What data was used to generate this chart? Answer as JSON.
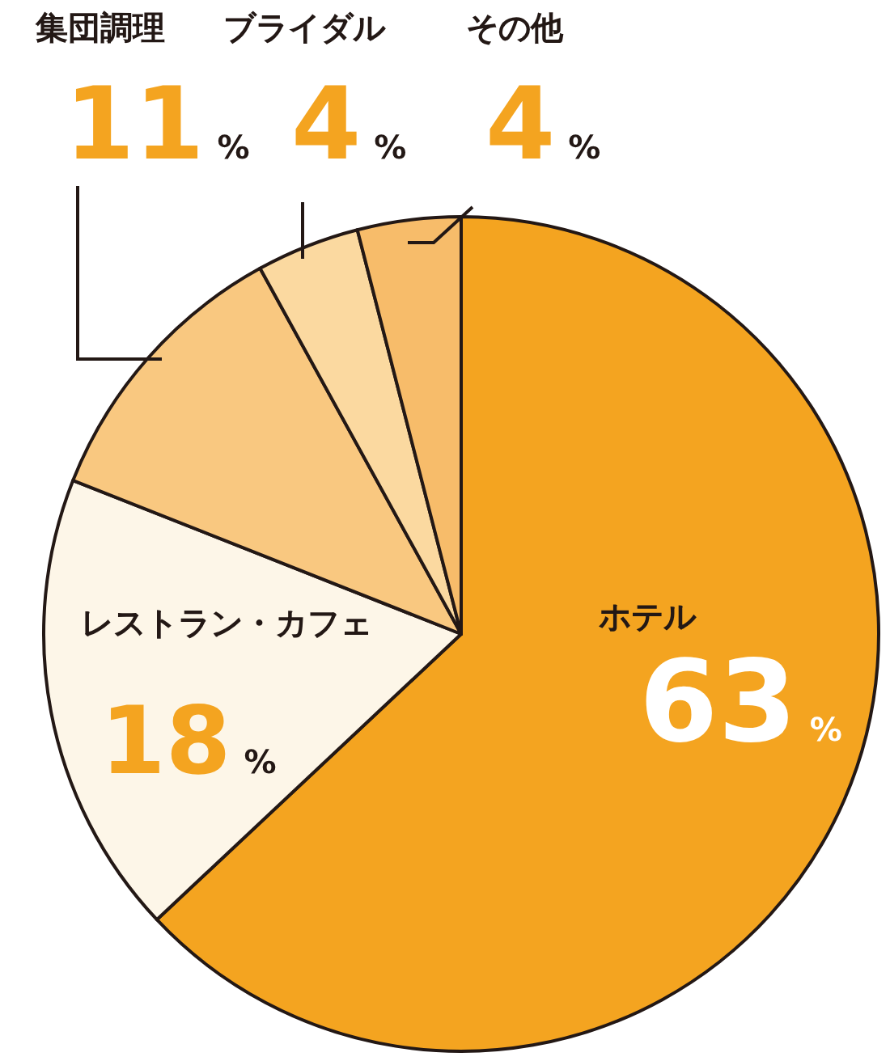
{
  "chart_data": {
    "type": "pie",
    "categories": [
      "ホテル",
      "レストラン・カフェ",
      "集団調理",
      "ブライダル",
      "その他"
    ],
    "values": [
      63,
      18,
      11,
      4,
      4
    ],
    "colors": [
      "#f4a420",
      "#fdf6e8",
      "#f9c880",
      "#fbd9a0",
      "#f7bc6a"
    ],
    "value_labels": [
      "63%",
      "18%",
      "11%",
      "4%",
      "4%"
    ]
  }
}
